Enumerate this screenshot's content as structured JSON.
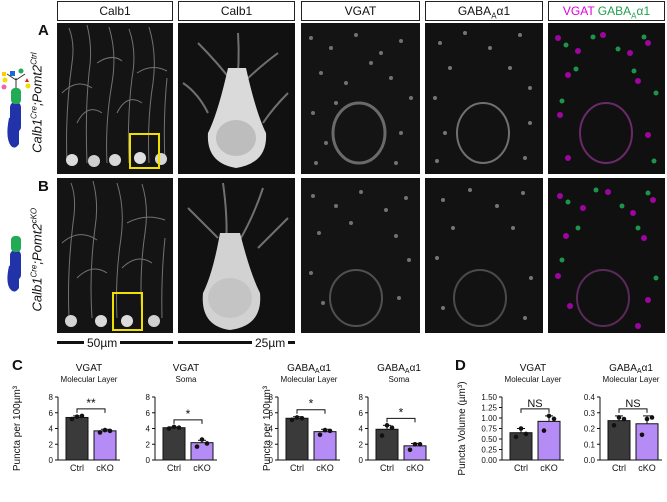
{
  "columns": [
    {
      "label": "Calb1"
    },
    {
      "label": "Calb1"
    },
    {
      "label": "VGAT"
    },
    {
      "label": "GABA",
      "sub": "A",
      "suffix": "α1"
    },
    {
      "label_vgat": "VGAT",
      "label_gaba": "GABA",
      "sub": "A",
      "suffix": "α1"
    }
  ],
  "rows": [
    {
      "letter": "A",
      "genotype_main": "Calb1",
      "genotype_sup1": "Cre",
      "genotype_mid": ";Pomt2",
      "genotype_sup2": "Ctrl"
    },
    {
      "letter": "B",
      "genotype_main": "Calb1",
      "genotype_sup1": "Cre",
      "genotype_mid": ";Pomt2",
      "genotype_sup2": "cKO"
    }
  ],
  "scalebars": {
    "left": "50µm",
    "right": "25µm"
  },
  "panel_c_letter": "C",
  "panel_d_letter": "D",
  "colors": {
    "ctrl": "#3a3a3a",
    "cko": "#b58cf5",
    "magenta": "#e000e0",
    "green": "#22c060",
    "box": "#f0e000"
  },
  "chart_data": [
    {
      "type": "bar",
      "panel": "C",
      "title_line1": "VGAT",
      "title_line2": "Molecular Layer",
      "ylabel": "Puncta per 100µm³",
      "categories": [
        "Ctrl",
        "cKO"
      ],
      "values": [
        5.4,
        3.7
      ],
      "errors": [
        0.2,
        0.2
      ],
      "points": [
        [
          5.2,
          5.5,
          5.6
        ],
        [
          3.5,
          3.8,
          3.7
        ]
      ],
      "ylim": [
        0,
        8
      ],
      "yticks": [
        0,
        2,
        4,
        6,
        8
      ],
      "significance": "**"
    },
    {
      "type": "bar",
      "panel": "C",
      "title_line1": "VGAT",
      "title_line2": "Soma",
      "ylabel": "",
      "categories": [
        "Ctrl",
        "cKO"
      ],
      "values": [
        4.1,
        2.2
      ],
      "errors": [
        0.1,
        0.3
      ],
      "points": [
        [
          4.0,
          4.2,
          4.1
        ],
        [
          1.7,
          2.6,
          2.1
        ]
      ],
      "ylim": [
        0,
        8
      ],
      "yticks": [
        0,
        2,
        4,
        6,
        8
      ],
      "significance": "*"
    },
    {
      "type": "bar",
      "panel": "C",
      "title_line1": "GABAAα1",
      "title_line2": "Molecular Layer",
      "ylabel": "Puncta per 100µm³",
      "categories": [
        "Ctrl",
        "cKO"
      ],
      "values": [
        5.3,
        3.6
      ],
      "errors": [
        0.2,
        0.3
      ],
      "points": [
        [
          5.1,
          5.4,
          5.3
        ],
        [
          3.2,
          3.8,
          3.7
        ]
      ],
      "ylim": [
        0,
        8
      ],
      "yticks": [
        0,
        2,
        4,
        6,
        8
      ],
      "significance": "*"
    },
    {
      "type": "bar",
      "panel": "C",
      "title_line1": "GABAAα1",
      "title_line2": "Soma",
      "ylabel": "",
      "categories": [
        "Ctrl",
        "cKO"
      ],
      "values": [
        3.9,
        1.8
      ],
      "errors": [
        0.5,
        0.3
      ],
      "points": [
        [
          3.1,
          4.4,
          4.1
        ],
        [
          1.3,
          2.0,
          2.0
        ]
      ],
      "ylim": [
        0,
        8
      ],
      "yticks": [
        0,
        2,
        4,
        6,
        8
      ],
      "significance": "*"
    },
    {
      "type": "bar",
      "panel": "D",
      "title_line1": "VGAT",
      "title_line2": "Molecular Layer",
      "ylabel": "Puncta Volume (µm³)",
      "categories": [
        "Ctrl",
        "cKO"
      ],
      "values": [
        0.65,
        0.92
      ],
      "errors": [
        0.1,
        0.13
      ],
      "points": [
        [
          0.55,
          0.75,
          0.62
        ],
        [
          0.7,
          1.05,
          0.98
        ]
      ],
      "ylim": [
        0,
        1.5
      ],
      "yticks": [
        0,
        0.25,
        0.5,
        0.75,
        1.0,
        1.25,
        1.5
      ],
      "significance": "NS"
    },
    {
      "type": "bar",
      "panel": "D",
      "title_line1": "GABAAα1",
      "title_line2": "Molecular Layer",
      "ylabel": "",
      "categories": [
        "Ctrl",
        "cKO"
      ],
      "values": [
        0.25,
        0.23
      ],
      "errors": [
        0.03,
        0.05
      ],
      "points": [
        [
          0.22,
          0.27,
          0.26
        ],
        [
          0.16,
          0.26,
          0.27
        ]
      ],
      "ylim": [
        0,
        0.4
      ],
      "yticks": [
        0,
        0.1,
        0.2,
        0.3,
        0.4
      ],
      "significance": "NS"
    }
  ]
}
